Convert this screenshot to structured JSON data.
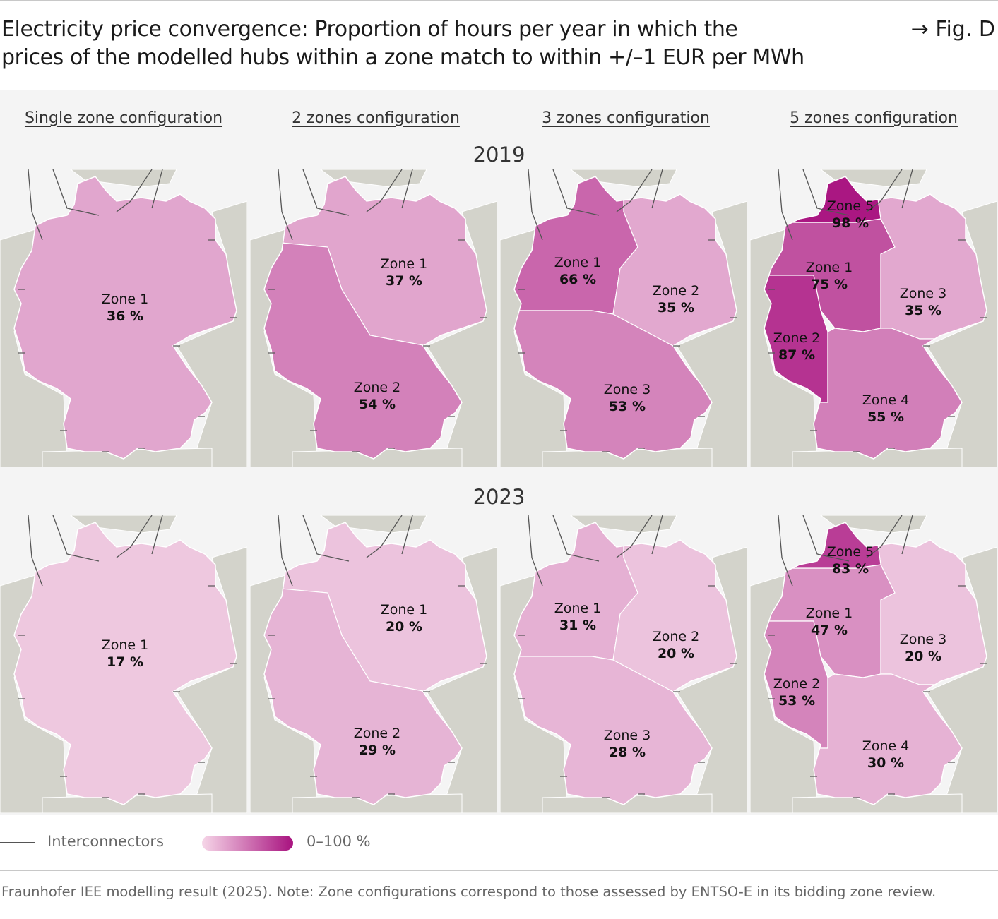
{
  "header": {
    "title_line1": "Electricity price convergence: Proportion of hours per year in which the",
    "title_line2": "prices of the modelled hubs within a zone match to within +/–1 EUR per MWh",
    "fig_ref": "→ Fig. D"
  },
  "chart_data": {
    "type": "heatmap",
    "title": "Electricity price convergence: Proportion of hours per year in which the prices of the modelled hubs within a zone match to within +/–1 EUR per MWh",
    "unit": "%",
    "columns": [
      "Single zone configuration",
      "2 zones configuration",
      "3 zones configuration",
      "5 zones configuration"
    ],
    "years": [
      "2019",
      "2023"
    ],
    "panels": [
      {
        "year": "2019",
        "config": "single",
        "zones": [
          {
            "name": "Zone 1",
            "value": 36,
            "label": "36 %"
          }
        ]
      },
      {
        "year": "2019",
        "config": "2zones",
        "zones": [
          {
            "name": "Zone 1",
            "value": 37,
            "label": "37 %"
          },
          {
            "name": "Zone 2",
            "value": 54,
            "label": "54 %"
          }
        ]
      },
      {
        "year": "2019",
        "config": "3zones",
        "zones": [
          {
            "name": "Zone 1",
            "value": 66,
            "label": "66 %"
          },
          {
            "name": "Zone 2",
            "value": 35,
            "label": "35 %"
          },
          {
            "name": "Zone 3",
            "value": 53,
            "label": "53 %"
          }
        ]
      },
      {
        "year": "2019",
        "config": "5zones",
        "zones": [
          {
            "name": "Zone 1",
            "value": 75,
            "label": "75 %"
          },
          {
            "name": "Zone 2",
            "value": 87,
            "label": "87 %"
          },
          {
            "name": "Zone 3",
            "value": 35,
            "label": "35 %"
          },
          {
            "name": "Zone 4",
            "value": 55,
            "label": "55 %"
          },
          {
            "name": "Zone 5",
            "value": 98,
            "label": "98 %"
          }
        ]
      },
      {
        "year": "2023",
        "config": "single",
        "zones": [
          {
            "name": "Zone 1",
            "value": 17,
            "label": "17 %"
          }
        ]
      },
      {
        "year": "2023",
        "config": "2zones",
        "zones": [
          {
            "name": "Zone 1",
            "value": 20,
            "label": "20 %"
          },
          {
            "name": "Zone 2",
            "value": 29,
            "label": "29 %"
          }
        ]
      },
      {
        "year": "2023",
        "config": "3zones",
        "zones": [
          {
            "name": "Zone 1",
            "value": 31,
            "label": "31 %"
          },
          {
            "name": "Zone 2",
            "value": 20,
            "label": "20 %"
          },
          {
            "name": "Zone 3",
            "value": 28,
            "label": "28 %"
          }
        ]
      },
      {
        "year": "2023",
        "config": "5zones",
        "zones": [
          {
            "name": "Zone 1",
            "value": 47,
            "label": "47 %"
          },
          {
            "name": "Zone 2",
            "value": 53,
            "label": "53 %"
          },
          {
            "name": "Zone 3",
            "value": 20,
            "label": "20 %"
          },
          {
            "name": "Zone 4",
            "value": 30,
            "label": "30 %"
          },
          {
            "name": "Zone 5",
            "value": 83,
            "label": "83 %"
          }
        ]
      }
    ],
    "color_scale": {
      "min": 0,
      "max": 100,
      "low": "#f6dcea",
      "high": "#a8127f"
    },
    "legend": {
      "interconnectors": "Interconnectors",
      "scale_label": "0–100 %"
    }
  },
  "colors": {
    "land": "#d3d3cb",
    "sea": "#f4f4f4",
    "line": "#555555"
  },
  "footer": "Fraunhofer IEE modelling result (2025). Note: Zone configurations correspond to those assessed by ENTSO-E in its bidding zone review."
}
